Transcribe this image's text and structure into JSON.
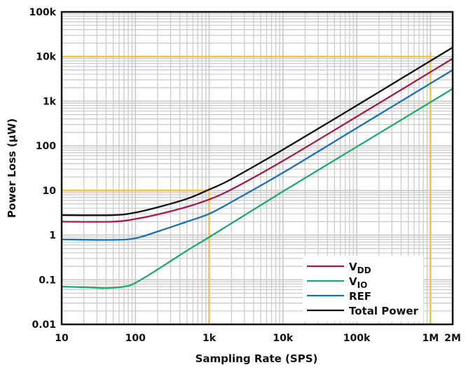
{
  "chart_data": {
    "type": "line",
    "title": "",
    "xlabel": "Sampling Rate (SPS)",
    "ylabel": "Power Loss (µW)",
    "xscale": "log",
    "yscale": "log",
    "xlim": [
      10,
      2000000
    ],
    "ylim": [
      0.01,
      100000
    ],
    "grid": true,
    "legend_placement": "bottom-right",
    "x_ticks": [
      {
        "value": 10,
        "label": "10"
      },
      {
        "value": 100,
        "label": "100"
      },
      {
        "value": 1000,
        "label": "1k"
      },
      {
        "value": 10000,
        "label": "10k"
      },
      {
        "value": 100000,
        "label": "100k"
      },
      {
        "value": 1000000,
        "label": "1M"
      },
      {
        "value": 2000000,
        "label": "2M"
      }
    ],
    "y_ticks": [
      {
        "value": 0.01,
        "label": "0.01"
      },
      {
        "value": 0.1,
        "label": "0.1"
      },
      {
        "value": 1,
        "label": "1"
      },
      {
        "value": 10,
        "label": "10"
      },
      {
        "value": 100,
        "label": "100"
      },
      {
        "value": 1000,
        "label": "1k"
      },
      {
        "value": 10000,
        "label": "10k"
      },
      {
        "value": 100000,
        "label": "100k"
      }
    ],
    "annotations": [
      {
        "type": "reference-lines",
        "x": 1000,
        "y": 10,
        "color": "#f5c242"
      },
      {
        "type": "reference-lines",
        "x": 1000000,
        "y": 10000,
        "color": "#f5c242"
      }
    ],
    "series": [
      {
        "name": "VDD",
        "name_main": "V",
        "name_sub": "DD",
        "color": "#a8193d",
        "x": [
          10,
          50,
          100,
          200,
          500,
          1000,
          2000,
          10000,
          100000,
          1000000,
          2000000
        ],
        "y": [
          2.0,
          2.0,
          2.3,
          2.9,
          4.3,
          6.3,
          10.5,
          46,
          450,
          4500,
          9000
        ]
      },
      {
        "name": "VIO",
        "name_main": "V",
        "name_sub": "IO",
        "color": "#1aab6b",
        "x": [
          10,
          20,
          40,
          70,
          100,
          200,
          500,
          1000,
          10000,
          100000,
          1000000,
          2000000
        ],
        "y": [
          0.07,
          0.068,
          0.065,
          0.07,
          0.085,
          0.17,
          0.45,
          0.9,
          9.5,
          95,
          950,
          1900
        ]
      },
      {
        "name": "REF",
        "name_main": "REF",
        "name_sub": "",
        "color": "#1a6fb5",
        "x": [
          10,
          50,
          100,
          200,
          500,
          1000,
          2000,
          10000,
          100000,
          1000000,
          2000000
        ],
        "y": [
          0.8,
          0.78,
          0.85,
          1.2,
          2.0,
          3.0,
          5.5,
          25,
          250,
          2500,
          5000
        ]
      },
      {
        "name": "Total Power",
        "name_main": "Total Power",
        "name_sub": "",
        "color": "#111111",
        "x": [
          10,
          50,
          100,
          200,
          500,
          1000,
          2000,
          10000,
          100000,
          1000000,
          2000000
        ],
        "y": [
          2.8,
          2.8,
          3.2,
          4.2,
          6.5,
          10.5,
          18,
          82,
          800,
          8000,
          16000
        ]
      }
    ]
  }
}
